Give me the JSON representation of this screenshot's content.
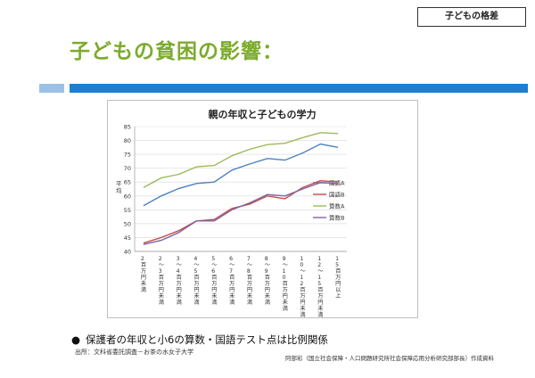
{
  "tag": "子どもの格差",
  "page_title": "子どもの貧困の影響：",
  "bullet": "保護者の年収と小6の算数・国語テスト点は比例関係",
  "source": "出所：文科省委託調査－お茶の水女子大学",
  "credit": "阿部彩（国立社会保障・人口問題研究所社会保障応用分析研究部部長）作成資料",
  "colors": {
    "title": "#7cab2c",
    "bar": "#1c7fd3",
    "bar_light": "#9cc1e6"
  },
  "chart_data": {
    "type": "line",
    "title": "親の年収と子どもの学力",
    "ylabel": "平均",
    "xlabel": "",
    "ylim": [
      40,
      85
    ],
    "yticks": [
      40,
      45,
      50,
      55,
      60,
      65,
      70,
      75,
      80,
      85
    ],
    "grid": true,
    "legend_position": "right",
    "categories": [
      "2百万円未満",
      "2〜3百万円未満",
      "3〜4百万円未満",
      "4〜5百万円未満",
      "5〜6百万円未満",
      "6〜7百万円未満",
      "7〜8百万円未満",
      "8〜9百万円未満",
      "9〜10百万円未満",
      "10〜12百万円未満",
      "12〜15百万円未満",
      "15百万円以上"
    ],
    "series": [
      {
        "name": "国語A",
        "color": "#4f81bd",
        "values": [
          56.5,
          60,
          62.7,
          64.5,
          65,
          69.3,
          71.5,
          73.5,
          72.9,
          75.5,
          78.7,
          77.5
        ]
      },
      {
        "name": "国語B",
        "color": "#c0504d",
        "values": [
          43,
          45,
          47.5,
          51,
          51.5,
          55.5,
          57,
          60,
          59,
          63,
          65.5,
          65
        ]
      },
      {
        "name": "算数A",
        "color": "#9bbb59",
        "values": [
          63,
          66.5,
          67.8,
          70.5,
          71,
          74.5,
          76.8,
          78.5,
          79,
          81,
          82.8,
          82.5
        ]
      },
      {
        "name": "算数B",
        "color": "#8064a2",
        "values": [
          42.5,
          44,
          46.8,
          51,
          51,
          55,
          57.5,
          60.5,
          60,
          62.5,
          64.8,
          64.5
        ]
      }
    ]
  }
}
